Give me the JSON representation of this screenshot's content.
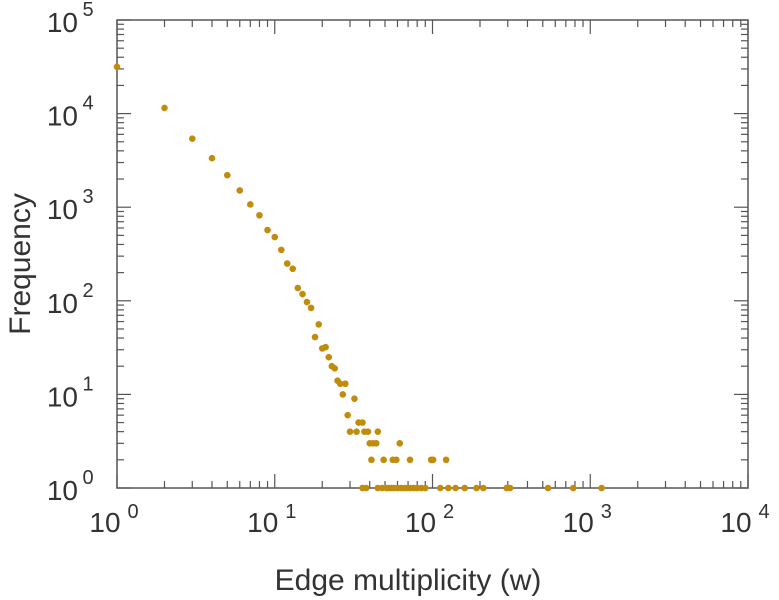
{
  "chart_data": {
    "type": "scatter",
    "title": "",
    "xlabel": "Edge multiplicity (w)",
    "ylabel": "Frequency",
    "xscale": "log",
    "yscale": "log",
    "xlim": [
      1,
      10000
    ],
    "ylim": [
      1,
      100000
    ],
    "tick_base": "10",
    "xticks_exp": [
      "0",
      "1",
      "2",
      "3",
      "4"
    ],
    "yticks_exp": [
      "0",
      "1",
      "2",
      "3",
      "4",
      "5"
    ],
    "grid": false,
    "point_color": "#c18b0b",
    "series": [
      {
        "name": "edges",
        "points": [
          [
            1,
            31600
          ],
          [
            2,
            11500
          ],
          [
            3,
            5400
          ],
          [
            4,
            3340
          ],
          [
            5,
            2200
          ],
          [
            6,
            1510
          ],
          [
            7,
            1070
          ],
          [
            8,
            820
          ],
          [
            9,
            570
          ],
          [
            10,
            480
          ],
          [
            11,
            350
          ],
          [
            12,
            250
          ],
          [
            13,
            220
          ],
          [
            14,
            137
          ],
          [
            15,
            118
          ],
          [
            16,
            97
          ],
          [
            17,
            84
          ],
          [
            18,
            41
          ],
          [
            19,
            56
          ],
          [
            20,
            31
          ],
          [
            21,
            32
          ],
          [
            22,
            25
          ],
          [
            23,
            20
          ],
          [
            24,
            19
          ],
          [
            25,
            14
          ],
          [
            26,
            13
          ],
          [
            27,
            10
          ],
          [
            28,
            13
          ],
          [
            29,
            6
          ],
          [
            30,
            4
          ],
          [
            32,
            9
          ],
          [
            33,
            4
          ],
          [
            34,
            5
          ],
          [
            36,
            5
          ],
          [
            37,
            4
          ],
          [
            39,
            4
          ],
          [
            40,
            3
          ],
          [
            41,
            2
          ],
          [
            42,
            3
          ],
          [
            44,
            3
          ],
          [
            45,
            4
          ],
          [
            49,
            2
          ],
          [
            56,
            2
          ],
          [
            59,
            2
          ],
          [
            62,
            3
          ],
          [
            72,
            2
          ],
          [
            98,
            2
          ],
          [
            101,
            2
          ],
          [
            122,
            2
          ],
          [
            36,
            1
          ],
          [
            38,
            1
          ],
          [
            45,
            1
          ],
          [
            48,
            1
          ],
          [
            51,
            1
          ],
          [
            53,
            1
          ],
          [
            55,
            1
          ],
          [
            57,
            1
          ],
          [
            60,
            1
          ],
          [
            63,
            1
          ],
          [
            66,
            1
          ],
          [
            69,
            1
          ],
          [
            72,
            1
          ],
          [
            76,
            1
          ],
          [
            80,
            1
          ],
          [
            85,
            1
          ],
          [
            90,
            1
          ],
          [
            112,
            1
          ],
          [
            126,
            1
          ],
          [
            140,
            1
          ],
          [
            160,
            1
          ],
          [
            190,
            1
          ],
          [
            210,
            1
          ],
          [
            295,
            1
          ],
          [
            310,
            1
          ],
          [
            540,
            1
          ],
          [
            780,
            1
          ],
          [
            1180,
            1
          ]
        ]
      }
    ]
  }
}
